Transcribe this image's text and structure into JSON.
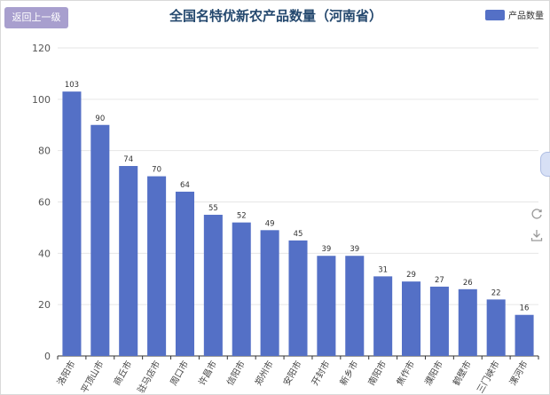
{
  "header": {
    "back_label": "返回上一级",
    "title": "全国名特优新农产品数量（河南省）"
  },
  "legend": {
    "label": "产品数量"
  },
  "toolbar": {
    "icons": [
      "restore-icon",
      "download-icon"
    ]
  },
  "colors": {
    "bar": "#5470c6",
    "title": "#24486e",
    "back_button": "#a89fce"
  },
  "chart_data": {
    "type": "bar",
    "title": "全国名特优新农产品数量（河南省）",
    "categories": [
      "洛阳市",
      "平顶山市",
      "商丘市",
      "驻马店市",
      "周口市",
      "许昌市",
      "信阳市",
      "郑州市",
      "安阳市",
      "开封市",
      "新乡市",
      "南阳市",
      "焦作市",
      "濮阳市",
      "鹤壁市",
      "三门峡市",
      "漯河市"
    ],
    "series": [
      {
        "name": "产品数量",
        "values": [
          103,
          90,
          74,
          70,
          64,
          55,
          52,
          49,
          45,
          39,
          39,
          31,
          29,
          27,
          26,
          22,
          16
        ]
      }
    ],
    "ylim": [
      0,
      120
    ],
    "yticks": [
      0,
      20,
      40,
      60,
      80,
      100,
      120
    ],
    "grid": true,
    "legend_position": "top-right"
  }
}
